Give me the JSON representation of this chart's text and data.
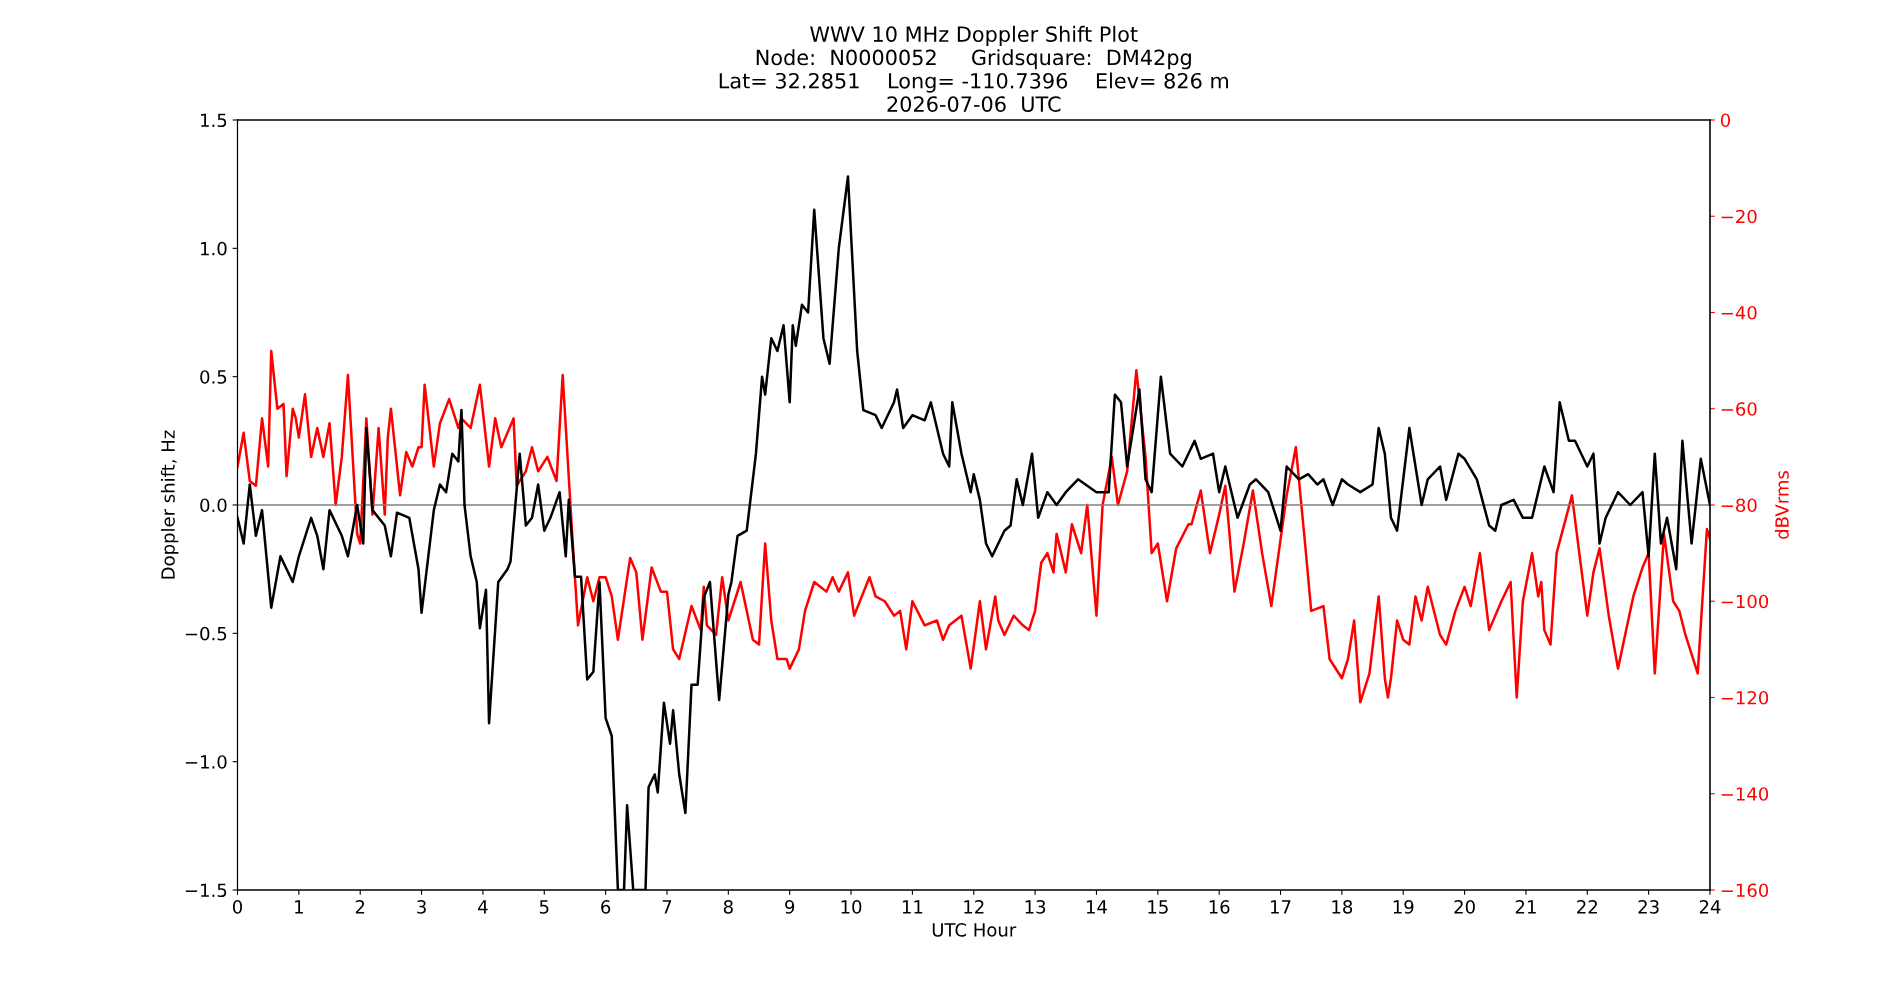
{
  "chart_data": {
    "type": "line",
    "title": "WWV 10 MHz Doppler Shift Plot\nNode:  N0000052     Gridsquare:  DM42pg\nLat= 32.2851    Long= -110.7396    Elev= 826 m\n2026-07-06  UTC",
    "xlabel": "UTC Hour",
    "ylabel": "Doppler shift, Hz",
    "y2label": "dBVrms",
    "xlim": [
      0,
      24
    ],
    "xticks": [
      0,
      1,
      2,
      3,
      4,
      5,
      6,
      7,
      8,
      9,
      10,
      11,
      12,
      13,
      14,
      15,
      16,
      17,
      18,
      19,
      20,
      21,
      22,
      23,
      24
    ],
    "ylim": [
      -1.5,
      1.5
    ],
    "yticks": [
      {
        "value": -1.5,
        "label": "−1.5"
      },
      {
        "value": -1.0,
        "label": "−1.0"
      },
      {
        "value": -0.5,
        "label": "−0.5"
      },
      {
        "value": 0,
        "label": "0.0"
      },
      {
        "value": 0.5,
        "label": "0.5"
      },
      {
        "value": 1.0,
        "label": "1.0"
      },
      {
        "value": 1.5,
        "label": "1.5"
      }
    ],
    "y2lim": [
      -160,
      0
    ],
    "y2ticks": [
      {
        "value": -160,
        "label": "−160"
      },
      {
        "value": -140,
        "label": "−140"
      },
      {
        "value": -120,
        "label": "−120"
      },
      {
        "value": -100,
        "label": "−100"
      },
      {
        "value": -80,
        "label": "−80"
      },
      {
        "value": -60,
        "label": "−60"
      },
      {
        "value": -40,
        "label": "−40"
      },
      {
        "value": -20,
        "label": "−20"
      },
      0
    ],
    "ref_lines": [
      {
        "axis": "y",
        "value": 0,
        "color": "#808080"
      }
    ],
    "grid": false,
    "legend": false,
    "series": [
      {
        "color": "#000000",
        "x": [
          0,
          0.1,
          0.2,
          0.3,
          0.4,
          0.55,
          0.7,
          0.9,
          1.0,
          1.2,
          1.3,
          1.4,
          1.5,
          1.7,
          1.8,
          1.95,
          2.05,
          2.1,
          2.2,
          2.4,
          2.5,
          2.6,
          2.8,
          2.95,
          3.0,
          3.2,
          3.3,
          3.4,
          3.5,
          3.6,
          3.65,
          3.7,
          3.8,
          3.9,
          3.95,
          4.05,
          4.1,
          4.25,
          4.4,
          4.45,
          4.6,
          4.7,
          4.8,
          4.9,
          5.0,
          5.1,
          5.25,
          5.35,
          5.4,
          5.5,
          5.6,
          5.7,
          5.8,
          5.9,
          6.0,
          6.1,
          6.2,
          6.3,
          6.35,
          6.45,
          6.65,
          6.7,
          6.8,
          6.85,
          6.95,
          7.05,
          7.1,
          7.2,
          7.3,
          7.4,
          7.5,
          7.6,
          7.7,
          7.85,
          8.0,
          8.05,
          8.15,
          8.3,
          8.45,
          8.55,
          8.6,
          8.7,
          8.8,
          8.9,
          9.0,
          9.05,
          9.1,
          9.2,
          9.3,
          9.4,
          9.55,
          9.65,
          9.8,
          9.95,
          10.1,
          10.2,
          10.4,
          10.5,
          10.7,
          10.75,
          10.85,
          11.0,
          11.2,
          11.3,
          11.5,
          11.6,
          11.65,
          11.8,
          11.95,
          12.0,
          12.1,
          12.2,
          12.3,
          12.5,
          12.6,
          12.7,
          12.8,
          12.95,
          13.05,
          13.2,
          13.35,
          13.5,
          13.7,
          14.0,
          14.2,
          14.3,
          14.4,
          14.5,
          14.7,
          14.8,
          14.9,
          15.05,
          15.2,
          15.4,
          15.6,
          15.7,
          15.9,
          16.0,
          16.1,
          16.2,
          16.3,
          16.5,
          16.6,
          16.8,
          17.0,
          17.1,
          17.3,
          17.45,
          17.6,
          17.7,
          17.85,
          18.0,
          18.1,
          18.3,
          18.5,
          18.6,
          18.7,
          18.8,
          18.9,
          19.1,
          19.3,
          19.4,
          19.6,
          19.7,
          19.9,
          20.0,
          20.2,
          20.4,
          20.5,
          20.6,
          20.8,
          20.95,
          21.1,
          21.3,
          21.45,
          21.55,
          21.7,
          21.8,
          22.0,
          22.1,
          22.2,
          22.3,
          22.5,
          22.7,
          22.9,
          23.0,
          23.1,
          23.2,
          23.3,
          23.45,
          23.55,
          23.7,
          23.85,
          24.0
        ],
        "values": [
          -0.05,
          -0.15,
          0.08,
          -0.12,
          -0.02,
          -0.4,
          -0.2,
          -0.3,
          -0.2,
          -0.05,
          -0.12,
          -0.25,
          -0.02,
          -0.12,
          -0.2,
          0.0,
          -0.15,
          0.3,
          -0.02,
          -0.08,
          -0.2,
          -0.03,
          -0.05,
          -0.25,
          -0.42,
          -0.02,
          0.08,
          0.05,
          0.2,
          0.17,
          0.37,
          0.0,
          -0.2,
          -0.3,
          -0.48,
          -0.33,
          -0.85,
          -0.3,
          -0.25,
          -0.22,
          0.2,
          -0.08,
          -0.05,
          0.08,
          -0.1,
          -0.05,
          0.05,
          -0.2,
          0.02,
          -0.28,
          -0.28,
          -0.68,
          -0.65,
          -0.3,
          -0.83,
          -0.9,
          -1.5,
          -1.5,
          -1.17,
          -1.5,
          -1.5,
          -1.1,
          -1.05,
          -1.12,
          -0.77,
          -0.93,
          -0.8,
          -1.05,
          -1.2,
          -0.7,
          -0.7,
          -0.36,
          -0.3,
          -0.76,
          -0.35,
          -0.3,
          -0.12,
          -0.1,
          0.2,
          0.5,
          0.43,
          0.65,
          0.6,
          0.7,
          0.4,
          0.7,
          0.62,
          0.78,
          0.75,
          1.15,
          0.65,
          0.55,
          1.0,
          1.28,
          0.6,
          0.37,
          0.35,
          0.3,
          0.4,
          0.45,
          0.3,
          0.35,
          0.33,
          0.4,
          0.2,
          0.15,
          0.4,
          0.2,
          0.05,
          0.12,
          0.02,
          -0.15,
          -0.2,
          -0.1,
          -0.08,
          0.1,
          0.0,
          0.2,
          -0.05,
          0.05,
          0.0,
          0.05,
          0.1,
          0.05,
          0.05,
          0.43,
          0.4,
          0.15,
          0.45,
          0.1,
          0.05,
          0.5,
          0.2,
          0.15,
          0.25,
          0.18,
          0.2,
          0.05,
          0.15,
          0.05,
          -0.05,
          0.08,
          0.1,
          0.05,
          -0.1,
          0.15,
          0.1,
          0.12,
          0.08,
          0.1,
          0.0,
          0.1,
          0.08,
          0.05,
          0.08,
          0.3,
          0.2,
          -0.05,
          -0.1,
          0.3,
          0.0,
          0.1,
          0.15,
          0.02,
          0.2,
          0.18,
          0.1,
          -0.08,
          -0.1,
          0.0,
          0.02,
          -0.05,
          -0.05,
          0.15,
          0.05,
          0.4,
          0.25,
          0.25,
          0.15,
          0.2,
          -0.15,
          -0.05,
          0.05,
          0.0,
          0.05,
          -0.2,
          0.2,
          -0.15,
          -0.05,
          -0.25,
          0.25,
          -0.15,
          0.18,
          0.0
        ]
      },
      {
        "color": "#ff0000",
        "axis": "y2",
        "x": [
          0,
          0.1,
          0.2,
          0.3,
          0.4,
          0.5,
          0.55,
          0.65,
          0.75,
          0.8,
          0.9,
          0.95,
          1.0,
          1.1,
          1.2,
          1.3,
          1.4,
          1.5,
          1.6,
          1.7,
          1.8,
          1.95,
          2.0,
          2.1,
          2.2,
          2.3,
          2.4,
          2.45,
          2.5,
          2.65,
          2.75,
          2.85,
          2.95,
          3.0,
          3.05,
          3.2,
          3.3,
          3.45,
          3.6,
          3.65,
          3.8,
          3.95,
          4.1,
          4.2,
          4.3,
          4.5,
          4.55,
          4.7,
          4.8,
          4.9,
          5.05,
          5.2,
          5.3,
          5.45,
          5.55,
          5.7,
          5.8,
          5.9,
          6.0,
          6.1,
          6.2,
          6.4,
          6.5,
          6.6,
          6.75,
          6.9,
          7.0,
          7.1,
          7.2,
          7.4,
          7.55,
          7.6,
          7.65,
          7.8,
          7.9,
          8.0,
          8.2,
          8.4,
          8.5,
          8.6,
          8.7,
          8.8,
          8.95,
          9.0,
          9.15,
          9.25,
          9.4,
          9.6,
          9.7,
          9.8,
          9.95,
          10.05,
          10.3,
          10.4,
          10.55,
          10.7,
          10.8,
          10.9,
          11.0,
          11.2,
          11.4,
          11.5,
          11.6,
          11.8,
          11.95,
          12.1,
          12.2,
          12.35,
          12.4,
          12.5,
          12.65,
          12.8,
          12.9,
          13.0,
          13.1,
          13.2,
          13.3,
          13.35,
          13.5,
          13.6,
          13.75,
          13.85,
          14.0,
          14.1,
          14.25,
          14.35,
          14.5,
          14.65,
          14.8,
          14.9,
          15.0,
          15.15,
          15.3,
          15.5,
          15.55,
          15.7,
          15.85,
          16.0,
          16.1,
          16.25,
          16.4,
          16.55,
          16.7,
          16.85,
          17.1,
          17.25,
          17.4,
          17.5,
          17.7,
          17.8,
          18.0,
          18.1,
          18.2,
          18.3,
          18.45,
          18.6,
          18.7,
          18.75,
          18.8,
          18.9,
          19.0,
          19.1,
          19.2,
          19.3,
          19.4,
          19.6,
          19.7,
          19.85,
          20.0,
          20.1,
          20.25,
          20.4,
          20.6,
          20.75,
          20.85,
          20.95,
          21.1,
          21.2,
          21.25,
          21.3,
          21.4,
          21.5,
          21.75,
          21.9,
          22.0,
          22.1,
          22.2,
          22.35,
          22.5,
          22.75,
          22.9,
          23.0,
          23.1,
          23.25,
          23.4,
          23.5,
          23.6,
          23.8,
          23.95,
          24.0
        ],
        "values": [
          -72,
          -65,
          -75,
          -76,
          -62,
          -72,
          -48,
          -60,
          -59,
          -74,
          -60,
          -62,
          -66,
          -57,
          -70,
          -64,
          -70,
          -63,
          -80,
          -70,
          -53,
          -86,
          -88,
          -62,
          -82,
          -64,
          -82,
          -66,
          -60,
          -78,
          -69,
          -72,
          -68,
          -68,
          -55,
          -72,
          -63,
          -58,
          -64,
          -62,
          -64,
          -55,
          -72,
          -62,
          -68,
          -62,
          -76,
          -73,
          -68,
          -73,
          -70,
          -75,
          -53,
          -85,
          -105,
          -95,
          -100,
          -95,
          -95,
          -99,
          -108,
          -91,
          -94,
          -108,
          -93,
          -98,
          -98,
          -110,
          -112,
          -101,
          -106,
          -97,
          -105,
          -107,
          -95,
          -104,
          -96,
          -108,
          -109,
          -88,
          -104,
          -112,
          -112,
          -114,
          -110,
          -102,
          -96,
          -98,
          -95,
          -98,
          -94,
          -103,
          -95,
          -99,
          -100,
          -103,
          -102,
          -110,
          -100,
          -105,
          -104,
          -108,
          -105,
          -103,
          -114,
          -100,
          -110,
          -99,
          -104,
          -107,
          -103,
          -105,
          -106,
          -102,
          -92,
          -90,
          -94,
          -86,
          -94,
          -84,
          -90,
          -80,
          -103,
          -80,
          -70,
          -80,
          -73,
          -52,
          -70,
          -90,
          -88,
          -100,
          -89,
          -84,
          -84,
          -77,
          -90,
          -82,
          -76,
          -98,
          -88,
          -77,
          -90,
          -101,
          -78,
          -68,
          -88,
          -102,
          -101,
          -112,
          -116,
          -112,
          -104,
          -121,
          -115,
          -99,
          -116,
          -120,
          -116,
          -104,
          -108,
          -109,
          -99,
          -104,
          -97,
          -107,
          -109,
          -102,
          -97,
          -101,
          -90,
          -106,
          -100,
          -96,
          -120,
          -100,
          -90,
          -99,
          -96,
          -106,
          -109,
          -90,
          -78,
          -93,
          -103,
          -94,
          -89,
          -103,
          -114,
          -99,
          -93,
          -90,
          -115,
          -86,
          -100,
          -102,
          -107,
          -115,
          -85,
          -87
        ]
      }
    ]
  }
}
